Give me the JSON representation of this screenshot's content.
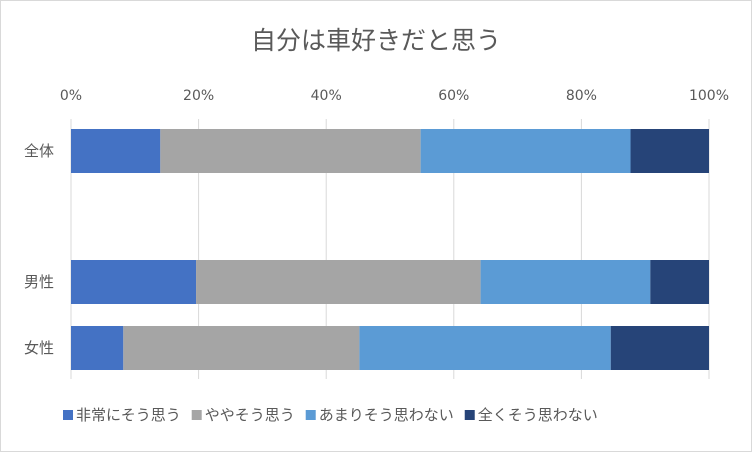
{
  "chart_data": {
    "type": "bar",
    "orientation": "horizontal",
    "stacked": "percent",
    "title": "自分は車好きだと思う",
    "categories": [
      "全体",
      "",
      "男性",
      "女性"
    ],
    "xlim": [
      0,
      100
    ],
    "x_ticks": [
      "0%",
      "20%",
      "40%",
      "60%",
      "80%",
      "100%"
    ],
    "grid": true,
    "legend_position": "bottom",
    "series": [
      {
        "name": "非常にそう思う",
        "color": "#4472C4",
        "values": [
          14.0,
          null,
          19.6,
          8.2
        ]
      },
      {
        "name": "ややそう思う",
        "color": "#A5A5A5",
        "values": [
          40.8,
          null,
          44.6,
          37.0
        ]
      },
      {
        "name": "あまりそう思わない",
        "color": "#5B9BD5",
        "values": [
          32.9,
          null,
          26.6,
          39.4
        ]
      },
      {
        "name": "全くそう思わない",
        "color": "#264478",
        "values": [
          12.3,
          null,
          9.2,
          15.4
        ]
      }
    ]
  }
}
